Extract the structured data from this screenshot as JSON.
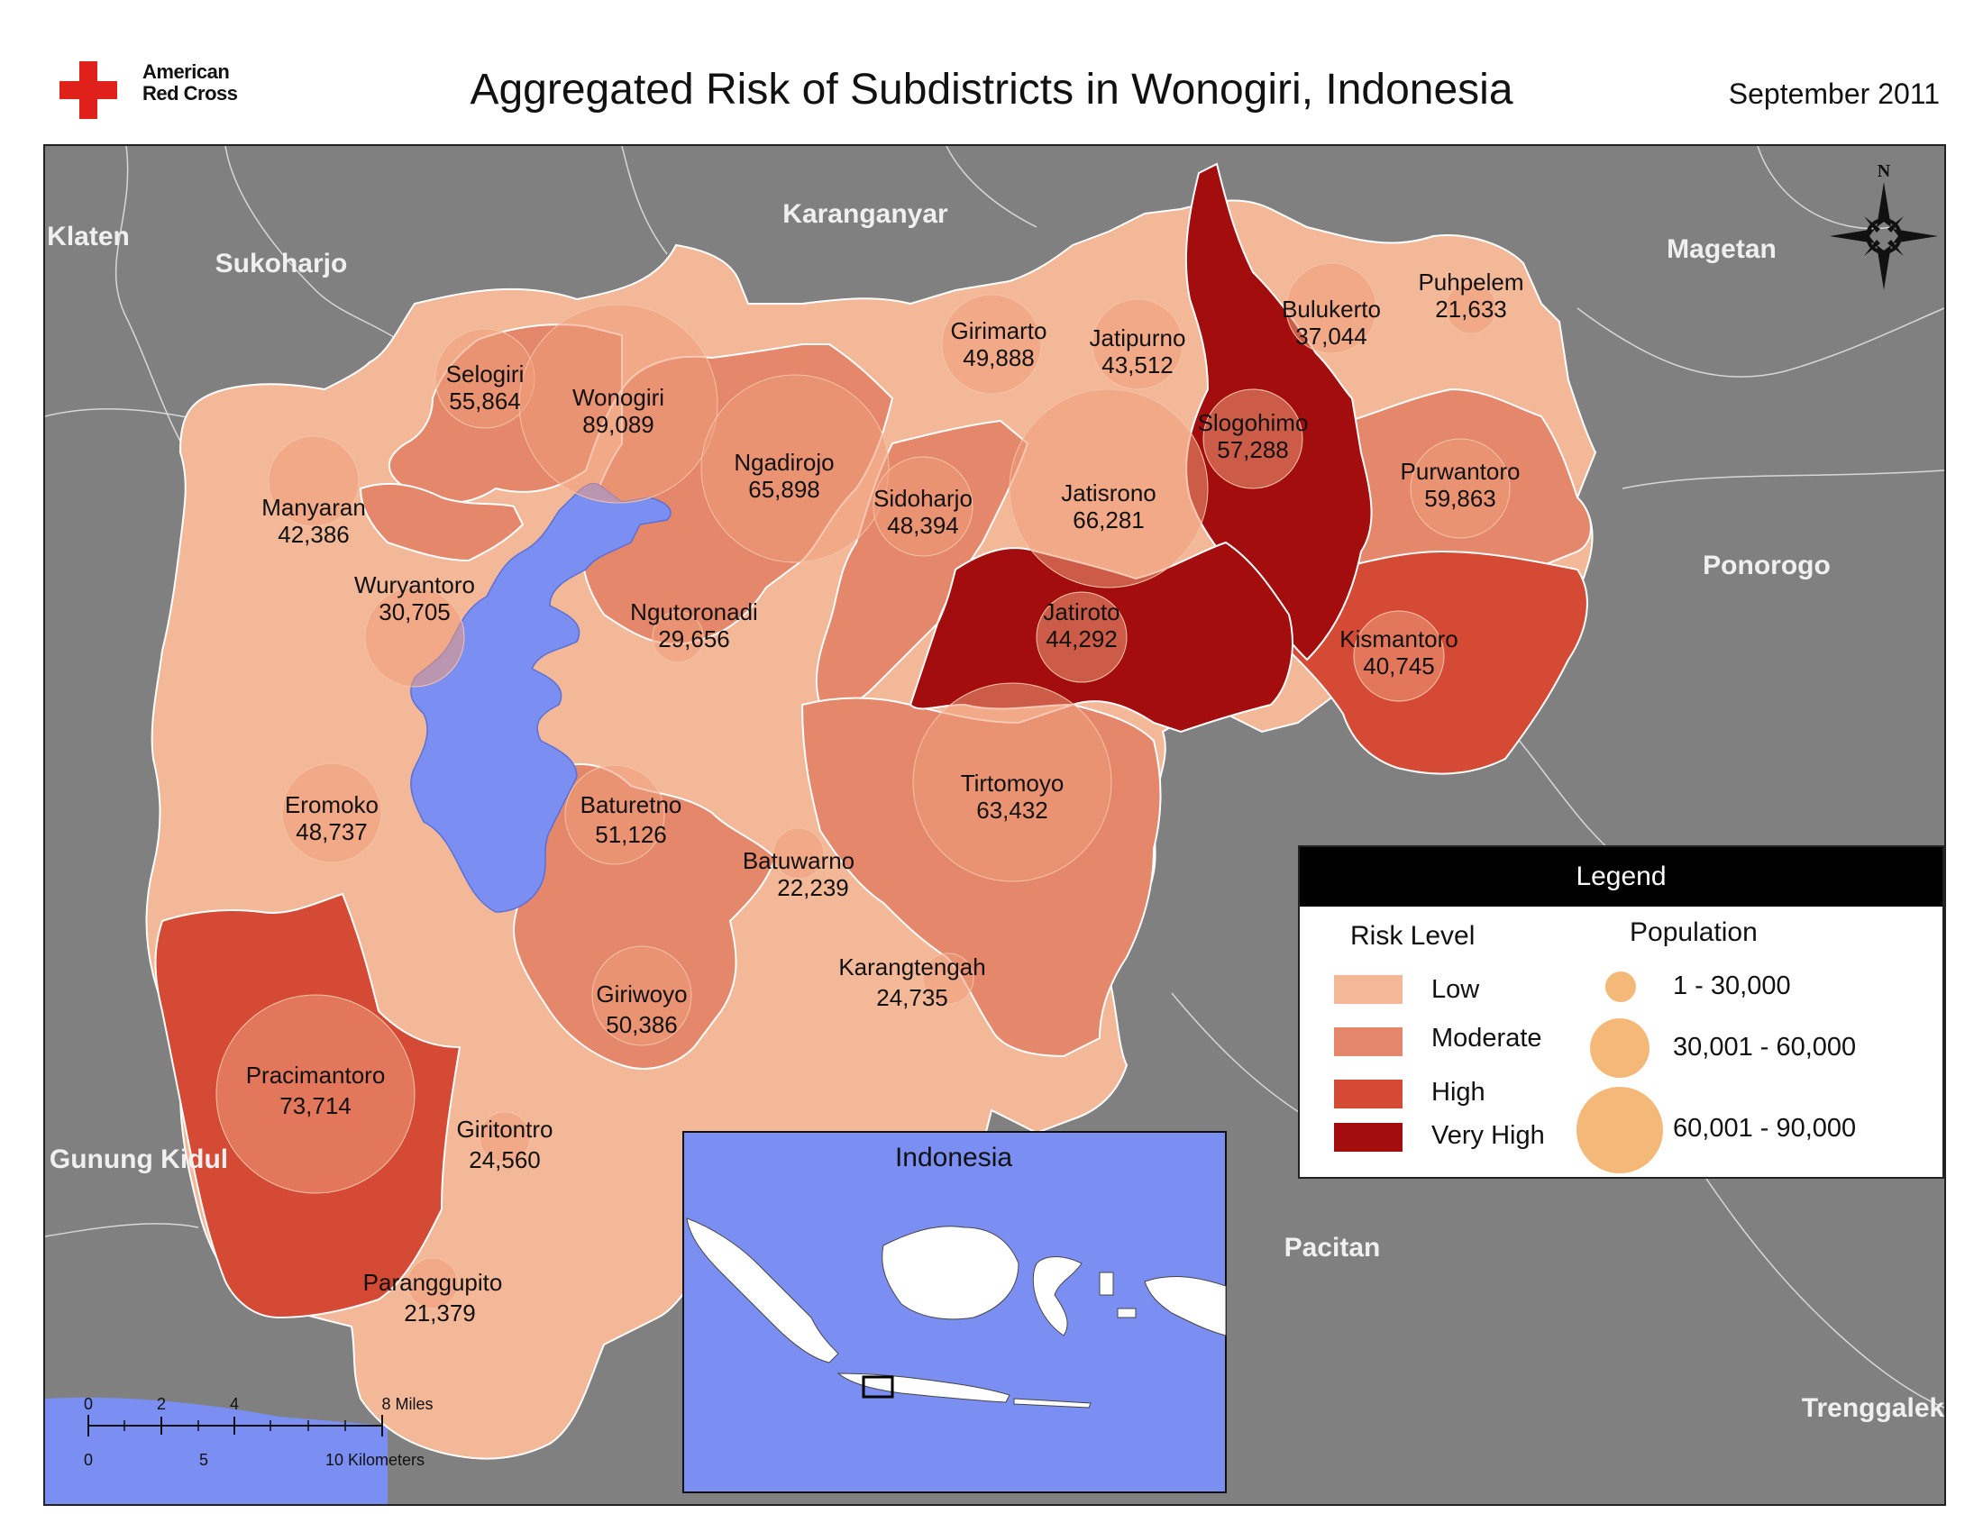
{
  "header": {
    "logo_line1": "American",
    "logo_line2": "Red Cross",
    "title": "Aggregated Risk of Subdistricts in Wonogiri, Indonesia",
    "date": "September 2011"
  },
  "colors": {
    "low": "#f3b898",
    "moderate": "#e5876a",
    "high": "#d44a35",
    "very_high": "#a30d0d",
    "water": "#7b8ef2",
    "background": "#808080",
    "population_circle": "#f4b978"
  },
  "neighbors": [
    {
      "name": "Klaten"
    },
    {
      "name": "Sukoharjo"
    },
    {
      "name": "Karanganyar"
    },
    {
      "name": "Magetan"
    },
    {
      "name": "Ponorogo"
    },
    {
      "name": "Pacitan"
    },
    {
      "name": "Gunung Kidul"
    },
    {
      "name": "Trenggalek"
    }
  ],
  "subdistricts": [
    {
      "name": "Selogiri",
      "population": "55,864",
      "risk": "Low"
    },
    {
      "name": "Wonogiri",
      "population": "89,089",
      "risk": "Moderate"
    },
    {
      "name": "Ngadirojo",
      "population": "65,898",
      "risk": "Moderate"
    },
    {
      "name": "Girimarto",
      "population": "49,888",
      "risk": "Low"
    },
    {
      "name": "Jatipurno",
      "population": "43,512",
      "risk": "Low"
    },
    {
      "name": "Bulukerto",
      "population": "37,044",
      "risk": "Low"
    },
    {
      "name": "Puhpelem",
      "population": "21,633",
      "risk": "Low"
    },
    {
      "name": "Slogohimo",
      "population": "57,288",
      "risk": "Very High"
    },
    {
      "name": "Purwantoro",
      "population": "59,863",
      "risk": "Moderate"
    },
    {
      "name": "Manyaran",
      "population": "42,386",
      "risk": "Low"
    },
    {
      "name": "Sidoharjo",
      "population": "48,394",
      "risk": "Moderate"
    },
    {
      "name": "Jatisrono",
      "population": "66,281",
      "risk": "Low"
    },
    {
      "name": "Wuryantoro",
      "population": "30,705",
      "risk": "Low"
    },
    {
      "name": "Ngutoronadi",
      "population": "29,656",
      "risk": "Low"
    },
    {
      "name": "Jatiroto",
      "population": "44,292",
      "risk": "Very High"
    },
    {
      "name": "Kismantoro",
      "population": "40,745",
      "risk": "High"
    },
    {
      "name": "Eromoko",
      "population": "48,737",
      "risk": "Low"
    },
    {
      "name": "Baturetno",
      "population": "51,126",
      "risk": "Moderate"
    },
    {
      "name": "Tirtomoyo",
      "population": "63,432",
      "risk": "Moderate"
    },
    {
      "name": "Batuwarno",
      "population": "22,239",
      "risk": "Low"
    },
    {
      "name": "Karangtengah",
      "population": "24,735",
      "risk": "Low"
    },
    {
      "name": "Giriwoyo",
      "population": "50,386",
      "risk": "Low"
    },
    {
      "name": "Pracimantoro",
      "population": "73,714",
      "risk": "High"
    },
    {
      "name": "Giritontro",
      "population": "24,560",
      "risk": "Low"
    },
    {
      "name": "Paranggupito",
      "population": "21,379",
      "risk": "Low"
    }
  ],
  "legend": {
    "title": "Legend",
    "risk_heading": "Risk Level",
    "risk_levels": [
      "Low",
      "Moderate",
      "High",
      "Very High"
    ],
    "population_heading": "Population",
    "population_classes": [
      "1 - 30,000",
      "30,001 - 60,000",
      "60,001 - 90,000"
    ]
  },
  "inset": {
    "title": "Indonesia"
  },
  "north_arrow": {
    "label": "N"
  },
  "scale_bar": {
    "miles_ticks": [
      "0",
      "2",
      "4"
    ],
    "miles_end": "8 Miles",
    "km_ticks": [
      "0",
      "5"
    ],
    "km_end": "10 Kilometers"
  }
}
